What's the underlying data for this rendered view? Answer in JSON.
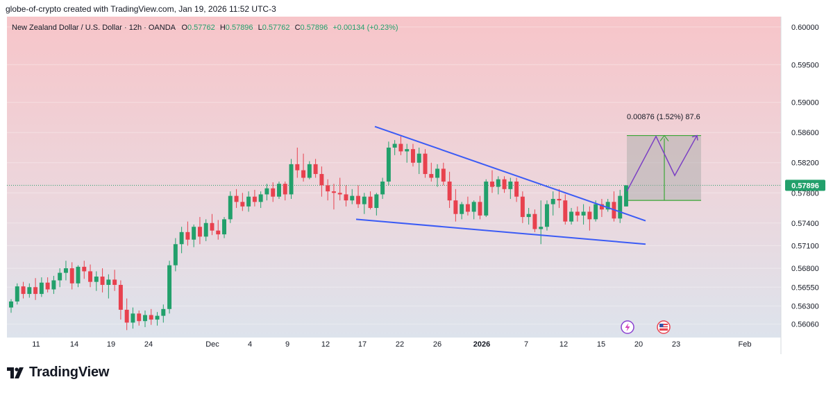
{
  "header": {
    "caption": "globe-of-crypto created with TradingView.com, Jan 19, 2026 11:52 UTC-3"
  },
  "legend": {
    "symbol": "New Zealand Dollar / U.S. Dollar · 12h · OANDA",
    "open_label": "O",
    "open": "0.57762",
    "high_label": "H",
    "high": "0.57896",
    "low_label": "L",
    "low": "0.57762",
    "close_label": "C",
    "close": "0.57896",
    "change": "+0.00134 (+0.23%)"
  },
  "price_badge": "0.57896",
  "measure_label": "0.00876 (1.52%) 87.6",
  "logo_text": "TradingView",
  "colors": {
    "up": "#22a06b",
    "down": "#e8414e",
    "trendline": "#3b5bf5",
    "projection": "#7b3fc4",
    "measure_box": "#a5a8a6",
    "measure_line": "#3aa635",
    "badge": "#22a06b"
  },
  "icons": [
    "lightning-icon",
    "us-flag-icon"
  ],
  "chart_data": {
    "type": "candlestick",
    "title": "",
    "ylim": [
      0.559,
      0.601
    ],
    "y_ticks": [
      "0.60000",
      "0.59500",
      "0.59000",
      "0.58600",
      "0.58200",
      "0.57800",
      "0.57400",
      "0.57100",
      "0.56800",
      "0.56550",
      "0.56300",
      "0.56060"
    ],
    "x_ticks": [
      "11",
      "14",
      "19",
      "24",
      "Dec",
      "4",
      "9",
      "12",
      "17",
      "22",
      "26",
      "2026",
      "7",
      "12",
      "15",
      "20",
      "23",
      "Feb"
    ],
    "candles": [
      [
        0.5628,
        0.5639,
        0.5621,
        0.5636
      ],
      [
        0.5636,
        0.566,
        0.5632,
        0.5656
      ],
      [
        0.5656,
        0.5662,
        0.564,
        0.5646
      ],
      [
        0.5646,
        0.566,
        0.5641,
        0.5655
      ],
      [
        0.5655,
        0.5667,
        0.5638,
        0.5646
      ],
      [
        0.5646,
        0.5668,
        0.5642,
        0.5661
      ],
      [
        0.5661,
        0.5668,
        0.5648,
        0.5652
      ],
      [
        0.5652,
        0.567,
        0.5646,
        0.5664
      ],
      [
        0.5664,
        0.568,
        0.5655,
        0.5674
      ],
      [
        0.5674,
        0.569,
        0.5664,
        0.568
      ],
      [
        0.568,
        0.5688,
        0.5652,
        0.566
      ],
      [
        0.566,
        0.5684,
        0.5655,
        0.5682
      ],
      [
        0.5682,
        0.569,
        0.5666,
        0.5676
      ],
      [
        0.5676,
        0.5685,
        0.5655,
        0.5662
      ],
      [
        0.5662,
        0.5676,
        0.565,
        0.5669
      ],
      [
        0.5669,
        0.568,
        0.5648,
        0.5658
      ],
      [
        0.5658,
        0.5672,
        0.564,
        0.5665
      ],
      [
        0.5665,
        0.5678,
        0.565,
        0.5658
      ],
      [
        0.5658,
        0.5664,
        0.5612,
        0.5625
      ],
      [
        0.5625,
        0.564,
        0.5598,
        0.5608
      ],
      [
        0.5608,
        0.5628,
        0.56,
        0.562
      ],
      [
        0.562,
        0.5624,
        0.5604,
        0.561
      ],
      [
        0.561,
        0.5624,
        0.5602,
        0.5618
      ],
      [
        0.5618,
        0.5626,
        0.5605,
        0.5612
      ],
      [
        0.5612,
        0.5622,
        0.5604,
        0.5617
      ],
      [
        0.5617,
        0.5632,
        0.5608,
        0.5626
      ],
      [
        0.5626,
        0.569,
        0.562,
        0.5684
      ],
      [
        0.5684,
        0.572,
        0.5676,
        0.5712
      ],
      [
        0.5712,
        0.5735,
        0.57,
        0.5728
      ],
      [
        0.5728,
        0.5742,
        0.571,
        0.5718
      ],
      [
        0.5718,
        0.5738,
        0.5708,
        0.5735
      ],
      [
        0.5735,
        0.5748,
        0.5712,
        0.5722
      ],
      [
        0.5722,
        0.5745,
        0.5716,
        0.574
      ],
      [
        0.574,
        0.5752,
        0.5724,
        0.573
      ],
      [
        0.573,
        0.5744,
        0.5718,
        0.5725
      ],
      [
        0.5725,
        0.5748,
        0.572,
        0.5745
      ],
      [
        0.5745,
        0.5782,
        0.574,
        0.5776
      ],
      [
        0.5776,
        0.5785,
        0.576,
        0.5768
      ],
      [
        0.5768,
        0.578,
        0.5756,
        0.5762
      ],
      [
        0.5762,
        0.5782,
        0.5755,
        0.5775
      ],
      [
        0.5775,
        0.5784,
        0.5762,
        0.5768
      ],
      [
        0.5768,
        0.5782,
        0.576,
        0.5778
      ],
      [
        0.5778,
        0.5792,
        0.577,
        0.5786
      ],
      [
        0.5786,
        0.5794,
        0.5768,
        0.5775
      ],
      [
        0.5775,
        0.5795,
        0.5772,
        0.5792
      ],
      [
        0.5792,
        0.5795,
        0.577,
        0.5778
      ],
      [
        0.5778,
        0.5825,
        0.5772,
        0.5818
      ],
      [
        0.5818,
        0.584,
        0.58,
        0.581
      ],
      [
        0.581,
        0.5832,
        0.5795,
        0.58
      ],
      [
        0.58,
        0.5822,
        0.5798,
        0.5818
      ],
      [
        0.5818,
        0.5825,
        0.58,
        0.5805
      ],
      [
        0.5805,
        0.5815,
        0.5775,
        0.579
      ],
      [
        0.579,
        0.5798,
        0.577,
        0.5782
      ],
      [
        0.5782,
        0.5792,
        0.5758,
        0.578
      ],
      [
        0.578,
        0.58,
        0.577,
        0.5778
      ],
      [
        0.5778,
        0.579,
        0.5762,
        0.577
      ],
      [
        0.577,
        0.5785,
        0.5765,
        0.5776
      ],
      [
        0.5776,
        0.579,
        0.576,
        0.5765
      ],
      [
        0.5765,
        0.578,
        0.5752,
        0.5775
      ],
      [
        0.5775,
        0.5782,
        0.5758,
        0.576
      ],
      [
        0.576,
        0.578,
        0.575,
        0.5778
      ],
      [
        0.5778,
        0.58,
        0.5772,
        0.5795
      ],
      [
        0.5795,
        0.5848,
        0.579,
        0.584
      ],
      [
        0.584,
        0.585,
        0.583,
        0.5845
      ],
      [
        0.5845,
        0.5855,
        0.583,
        0.5835
      ],
      [
        0.5835,
        0.5845,
        0.582,
        0.5838
      ],
      [
        0.5838,
        0.5845,
        0.5815,
        0.582
      ],
      [
        0.582,
        0.584,
        0.5805,
        0.5832
      ],
      [
        0.5832,
        0.5838,
        0.58,
        0.5805
      ],
      [
        0.5805,
        0.582,
        0.5795,
        0.58
      ],
      [
        0.58,
        0.5818,
        0.5788,
        0.5812
      ],
      [
        0.5812,
        0.582,
        0.579,
        0.5795
      ],
      [
        0.5795,
        0.5808,
        0.576,
        0.577
      ],
      [
        0.577,
        0.5785,
        0.5742,
        0.5752
      ],
      [
        0.5752,
        0.5768,
        0.5745,
        0.5765
      ],
      [
        0.5765,
        0.5775,
        0.575,
        0.5755
      ],
      [
        0.5755,
        0.577,
        0.5745,
        0.5768
      ],
      [
        0.5768,
        0.5776,
        0.5745,
        0.575
      ],
      [
        0.575,
        0.5798,
        0.5748,
        0.5795
      ],
      [
        0.5795,
        0.581,
        0.578,
        0.5788
      ],
      [
        0.5788,
        0.5802,
        0.5778,
        0.5798
      ],
      [
        0.5798,
        0.5802,
        0.578,
        0.5785
      ],
      [
        0.5785,
        0.58,
        0.5772,
        0.5795
      ],
      [
        0.5795,
        0.58,
        0.5768,
        0.5775
      ],
      [
        0.5775,
        0.5782,
        0.574,
        0.5748
      ],
      [
        0.5748,
        0.576,
        0.5738,
        0.5752
      ],
      [
        0.5752,
        0.5758,
        0.5728,
        0.5732
      ],
      [
        0.5732,
        0.577,
        0.5712,
        0.5735
      ],
      [
        0.5735,
        0.577,
        0.573,
        0.5765
      ],
      [
        0.5765,
        0.5782,
        0.575,
        0.5772
      ],
      [
        0.5772,
        0.5785,
        0.576,
        0.577
      ],
      [
        0.577,
        0.5778,
        0.5738,
        0.5742
      ],
      [
        0.5742,
        0.576,
        0.5738,
        0.5755
      ],
      [
        0.5755,
        0.5762,
        0.5742,
        0.575
      ],
      [
        0.575,
        0.5765,
        0.5738,
        0.5755
      ],
      [
        0.5755,
        0.5762,
        0.573,
        0.5745
      ],
      [
        0.5745,
        0.577,
        0.5742,
        0.5765
      ],
      [
        0.5765,
        0.5772,
        0.5748,
        0.5758
      ],
      [
        0.5758,
        0.5772,
        0.5755,
        0.5768
      ],
      [
        0.5768,
        0.5782,
        0.5742,
        0.5746
      ],
      [
        0.5746,
        0.5784,
        0.574,
        0.5776
      ],
      [
        0.5762,
        0.579,
        0.5762,
        0.579
      ]
    ],
    "trendlines": [
      {
        "from": [
          0.5868
        ],
        "to": [
          0.5743
        ]
      },
      {
        "from": [
          0.5745
        ],
        "to": [
          0.5712
        ]
      }
    ],
    "measure": {
      "change": "0.00876",
      "percent": "1.52%",
      "bars": "87.6",
      "top": 0.5856,
      "bottom": 0.577
    }
  }
}
